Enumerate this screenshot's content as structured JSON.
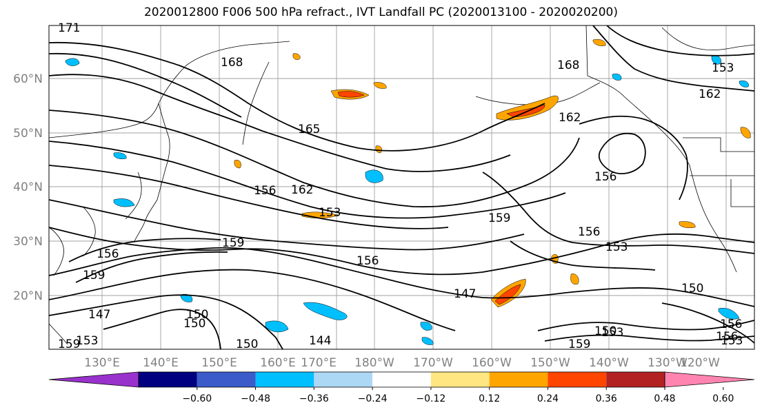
{
  "title": "2020012800 F006 500 hPa refract., IVT Landfall PC (2020013100 - 2020020200)",
  "lat_labels": [
    "60°N",
    "50°N",
    "40°N",
    "30°N",
    "20°N"
  ],
  "lon_labels": [
    "130°E",
    "140°E",
    "150°E",
    "160°E",
    "170°E",
    "180°W",
    "170°W",
    "160°W",
    "150°W",
    "140°W",
    "130°W",
    "120°W"
  ],
  "contour_labels": [
    "171",
    "168",
    "165",
    "162",
    "156",
    "153",
    "159",
    "156",
    "150",
    "147",
    "144",
    "150",
    "159",
    "168",
    "162",
    "162",
    "156",
    "159",
    "156",
    "153",
    "150",
    "150",
    "153",
    "156",
    "156",
    "147",
    "153",
    "159",
    "156",
    "159",
    "153",
    "150",
    "153"
  ],
  "colorbar": {
    "colors": [
      "#9932cc",
      "#000080",
      "#3a5bc9",
      "#00bfff",
      "#add8f5",
      "#ffffff",
      "#ffe680",
      "#ffa500",
      "#ff4500",
      "#b22222",
      "#ff85b0"
    ],
    "tick_labels": [
      "−0.60",
      "−0.48",
      "−0.36",
      "−0.24",
      "−0.12",
      "0.12",
      "0.24",
      "0.36",
      "0.48",
      "0.60"
    ]
  },
  "colors": {
    "grid": "#a0a0a0",
    "axis_label": "#808080",
    "contour": "#000000"
  }
}
